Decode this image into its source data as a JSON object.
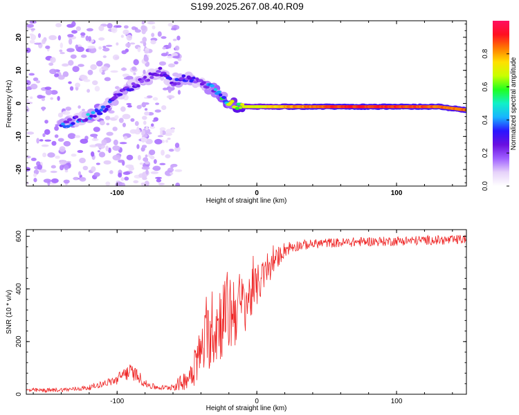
{
  "title": "S199.2025.267.08.40.R09",
  "colors": {
    "snr_line": "#ee2222",
    "spectral_ramp": [
      "#ffffff",
      "#e6d2fa",
      "#a060ff",
      "#6a10e0",
      "#2a14ff",
      "#18b4ff",
      "#10f0c8",
      "#20ff20",
      "#c8ff00",
      "#ffe000",
      "#ff7a00",
      "#ff1020",
      "#ff1060"
    ]
  },
  "chart_data": [
    {
      "type": "heatmap",
      "name": "spectrogram",
      "xlabel": "Height of straight line (km)",
      "ylabel": "Frequency (Hz)",
      "xlim": [
        -165,
        150
      ],
      "ylim": [
        -25,
        25
      ],
      "xticks": [
        -100,
        0,
        100
      ],
      "xtick_labels": [
        "-100",
        "0",
        "100"
      ],
      "yticks": [
        -20,
        -10,
        0,
        10,
        20
      ],
      "ytick_labels": [
        "-20",
        "-10",
        "0",
        "10",
        "20"
      ],
      "ridge": {
        "x": [
          -140,
          -130,
          -120,
          -110,
          -100,
          -90,
          -80,
          -70,
          -60,
          -50,
          -40,
          -30,
          -20,
          -10,
          0,
          20,
          60,
          100,
          130,
          150
        ],
        "freq": [
          -7,
          -5,
          -4,
          -2,
          2,
          5,
          7,
          10,
          6,
          8,
          6,
          4,
          0,
          -1,
          -1,
          -1,
          -1,
          -1,
          -1,
          -2
        ],
        "amplitude": [
          0.35,
          0.35,
          0.4,
          0.35,
          0.3,
          0.3,
          0.25,
          0.3,
          0.3,
          0.3,
          0.3,
          0.4,
          0.6,
          0.7,
          0.7,
          0.8,
          0.9,
          0.9,
          0.85,
          0.85
        ]
      },
      "colorbar": {
        "label": "Normalized spectral amplitude",
        "range": [
          0,
          1
        ],
        "ticks": [
          0.0,
          0.2,
          0.4,
          0.6,
          0.8
        ],
        "tick_labels": [
          "0.0",
          "0.2",
          "0.4",
          "0.6",
          "0.8"
        ]
      }
    },
    {
      "type": "line",
      "name": "snr",
      "xlabel": "Height of straight line (km)",
      "ylabel": "SNR (10 * v/v)",
      "xlim": [
        -165,
        150
      ],
      "ylim": [
        0,
        625
      ],
      "xticks": [
        -100,
        0,
        100
      ],
      "xtick_labels": [
        "-100",
        "0",
        "100"
      ],
      "yticks": [
        0,
        200,
        400,
        600
      ],
      "ytick_labels": [
        "0",
        "200",
        "400",
        "600"
      ],
      "series": [
        {
          "name": "SNR",
          "x": [
            -165,
            -150,
            -140,
            -130,
            -120,
            -110,
            -100,
            -95,
            -90,
            -85,
            -80,
            -75,
            -70,
            -65,
            -60,
            -55,
            -50,
            -45,
            -40,
            -35,
            -30,
            -25,
            -20,
            -15,
            -10,
            -5,
            0,
            5,
            10,
            15,
            20,
            25,
            30,
            40,
            50,
            60,
            70,
            80,
            90,
            100,
            110,
            120,
            130,
            140,
            150
          ],
          "y": [
            15,
            15,
            17,
            20,
            25,
            40,
            55,
            80,
            85,
            70,
            40,
            30,
            25,
            25,
            30,
            40,
            60,
            100,
            160,
            220,
            250,
            290,
            310,
            330,
            340,
            370,
            410,
            450,
            480,
            520,
            550,
            560,
            565,
            570,
            575,
            575,
            578,
            580,
            580,
            582,
            583,
            585,
            585,
            585,
            590
          ],
          "noise": [
            8,
            8,
            8,
            8,
            10,
            12,
            20,
            30,
            30,
            25,
            15,
            12,
            10,
            10,
            15,
            30,
            40,
            70,
            100,
            130,
            150,
            160,
            170,
            150,
            120,
            100,
            80,
            60,
            50,
            40,
            30,
            25,
            20,
            18,
            18,
            18,
            18,
            18,
            18,
            18,
            18,
            18,
            18,
            18,
            18
          ]
        }
      ]
    }
  ]
}
